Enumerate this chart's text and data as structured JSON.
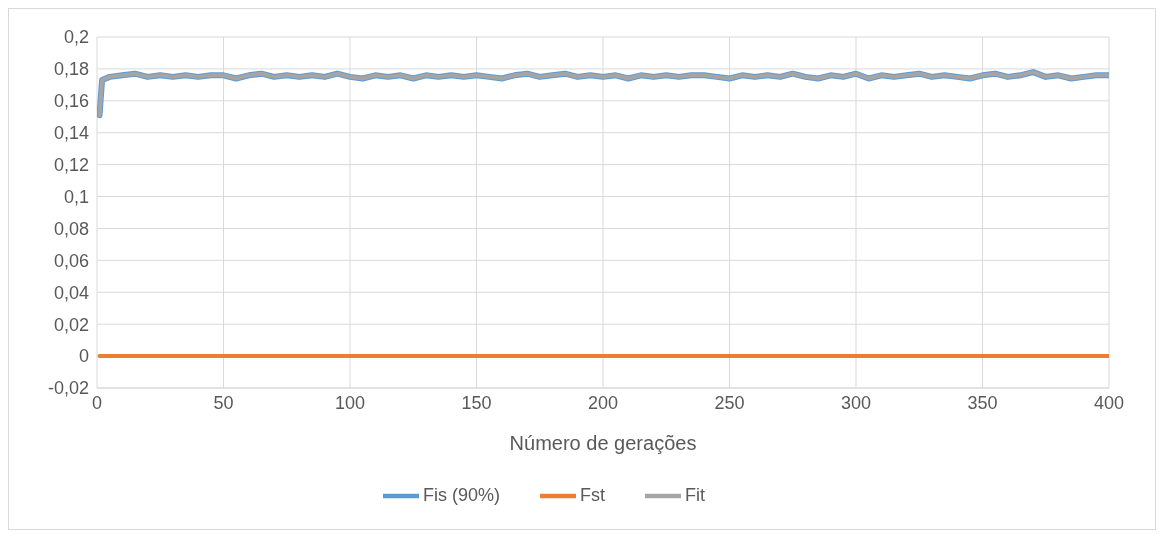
{
  "chart_data": {
    "type": "line",
    "xlabel": "Número de gerações",
    "x": [
      1,
      2,
      5,
      10,
      15,
      20,
      25,
      30,
      35,
      40,
      45,
      50,
      55,
      60,
      65,
      70,
      75,
      80,
      85,
      90,
      95,
      100,
      105,
      110,
      115,
      120,
      125,
      130,
      135,
      140,
      145,
      150,
      155,
      160,
      165,
      170,
      175,
      180,
      185,
      190,
      195,
      200,
      205,
      210,
      215,
      220,
      225,
      230,
      235,
      240,
      245,
      250,
      255,
      260,
      265,
      270,
      275,
      280,
      285,
      290,
      295,
      300,
      305,
      310,
      315,
      320,
      325,
      330,
      335,
      340,
      345,
      350,
      355,
      360,
      365,
      370,
      375,
      380,
      385,
      390,
      395,
      400
    ],
    "series": [
      {
        "name": "Fis (90%)",
        "color": "#5b9bd5",
        "values": [
          0.151,
          0.173,
          0.175,
          0.176,
          0.177,
          0.175,
          0.176,
          0.175,
          0.176,
          0.175,
          0.176,
          0.176,
          0.174,
          0.176,
          0.177,
          0.175,
          0.176,
          0.175,
          0.176,
          0.175,
          0.177,
          0.175,
          0.174,
          0.176,
          0.175,
          0.176,
          0.174,
          0.176,
          0.175,
          0.176,
          0.175,
          0.176,
          0.175,
          0.174,
          0.176,
          0.177,
          0.175,
          0.176,
          0.177,
          0.175,
          0.176,
          0.175,
          0.176,
          0.174,
          0.176,
          0.175,
          0.176,
          0.175,
          0.176,
          0.176,
          0.175,
          0.174,
          0.176,
          0.175,
          0.176,
          0.175,
          0.177,
          0.175,
          0.174,
          0.176,
          0.175,
          0.177,
          0.174,
          0.176,
          0.175,
          0.176,
          0.177,
          0.175,
          0.176,
          0.175,
          0.174,
          0.176,
          0.177,
          0.175,
          0.176,
          0.178,
          0.175,
          0.176,
          0.174,
          0.175,
          0.176,
          0.176
        ]
      },
      {
        "name": "Fst",
        "color": "#ed7d31",
        "values": [
          0,
          0,
          0,
          0,
          0,
          0,
          0,
          0,
          0,
          0,
          0,
          0,
          0,
          0,
          0,
          0,
          0,
          0,
          0,
          0,
          0,
          0,
          0,
          0,
          0,
          0,
          0,
          0,
          0,
          0,
          0,
          0,
          0,
          0,
          0,
          0,
          0,
          0,
          0,
          0,
          0,
          0,
          0,
          0,
          0,
          0,
          0,
          0,
          0,
          0,
          0,
          0,
          0,
          0,
          0,
          0,
          0,
          0,
          0,
          0,
          0,
          0,
          0,
          0,
          0,
          0,
          0,
          0,
          0,
          0,
          0,
          0,
          0,
          0,
          0,
          0,
          0,
          0,
          0,
          0,
          0,
          0
        ]
      },
      {
        "name": "Fit",
        "color": "#a5a5a5",
        "values": [
          0.151,
          0.173,
          0.175,
          0.176,
          0.177,
          0.175,
          0.176,
          0.175,
          0.176,
          0.175,
          0.176,
          0.176,
          0.174,
          0.176,
          0.177,
          0.175,
          0.176,
          0.175,
          0.176,
          0.175,
          0.177,
          0.175,
          0.174,
          0.176,
          0.175,
          0.176,
          0.174,
          0.176,
          0.175,
          0.176,
          0.175,
          0.176,
          0.175,
          0.174,
          0.176,
          0.177,
          0.175,
          0.176,
          0.177,
          0.175,
          0.176,
          0.175,
          0.176,
          0.174,
          0.176,
          0.175,
          0.176,
          0.175,
          0.176,
          0.176,
          0.175,
          0.174,
          0.176,
          0.175,
          0.176,
          0.175,
          0.177,
          0.175,
          0.174,
          0.176,
          0.175,
          0.177,
          0.174,
          0.176,
          0.175,
          0.176,
          0.177,
          0.175,
          0.176,
          0.175,
          0.174,
          0.176,
          0.177,
          0.175,
          0.176,
          0.178,
          0.175,
          0.176,
          0.174,
          0.175,
          0.176,
          0.176
        ]
      }
    ],
    "xlim": [
      0,
      400
    ],
    "xticks": [
      0,
      50,
      100,
      150,
      200,
      250,
      300,
      350,
      400
    ],
    "ylim": [
      -0.02,
      0.2
    ],
    "yticks": [
      {
        "value": -0.02,
        "label": "-0,02"
      },
      {
        "value": 0,
        "label": "0"
      },
      {
        "value": 0.02,
        "label": "0,02"
      },
      {
        "value": 0.04,
        "label": "0,04"
      },
      {
        "value": 0.06,
        "label": "0,06"
      },
      {
        "value": 0.08,
        "label": "0,08"
      },
      {
        "value": 0.1,
        "label": "0,1"
      },
      {
        "value": 0.12,
        "label": "0,12"
      },
      {
        "value": 0.14,
        "label": "0,14"
      },
      {
        "value": 0.16,
        "label": "0,16"
      },
      {
        "value": 0.18,
        "label": "0,18"
      },
      {
        "value": 0.2,
        "label": "0,2"
      }
    ],
    "grid": true,
    "legend": "bottom",
    "marker": "none",
    "line_style": "solid"
  }
}
